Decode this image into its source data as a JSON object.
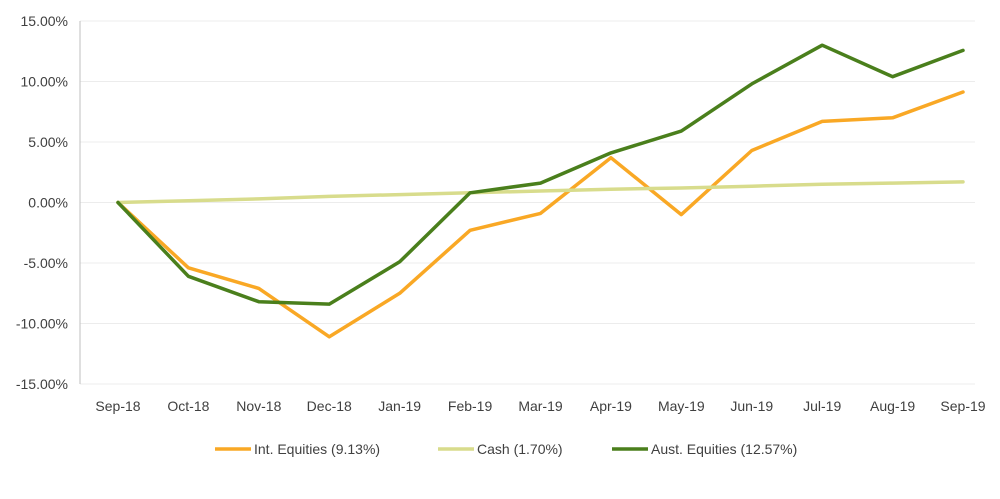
{
  "chart_data": {
    "type": "line",
    "title": "",
    "xlabel": "",
    "ylabel": "",
    "categories": [
      "Sep-18",
      "Oct-18",
      "Nov-18",
      "Dec-18",
      "Jan-19",
      "Feb-19",
      "Mar-19",
      "Apr-19",
      "May-19",
      "Jun-19",
      "Jul-19",
      "Aug-19",
      "Sep-19"
    ],
    "ylim": [
      -15,
      15
    ],
    "yticks": [
      15,
      10,
      5,
      0,
      -5,
      -10,
      -15
    ],
    "ytick_labels": [
      "15.00%",
      "10.00%",
      "5.00%",
      "0.00%",
      "-5.00%",
      "-10.00%",
      "-15.00%"
    ],
    "grid": true,
    "legend_position": "bottom",
    "series": [
      {
        "name": "Int. Equities (9.13%)",
        "color": "#F9A825",
        "values": [
          0.0,
          -5.4,
          -7.1,
          -11.1,
          -7.5,
          -2.3,
          -0.9,
          3.7,
          -1.0,
          4.3,
          6.7,
          7.0,
          9.13
        ]
      },
      {
        "name": "Cash (1.70%)",
        "color": "#D8DC8C",
        "values": [
          0.0,
          0.15,
          0.3,
          0.5,
          0.65,
          0.8,
          0.95,
          1.1,
          1.2,
          1.35,
          1.5,
          1.6,
          1.7
        ]
      },
      {
        "name": "Aust. Equities (12.57%)",
        "color": "#4A7F1C",
        "values": [
          0.0,
          -6.1,
          -8.2,
          -8.4,
          -4.9,
          0.8,
          1.6,
          4.1,
          5.9,
          9.8,
          13.0,
          10.4,
          12.57
        ]
      }
    ]
  }
}
